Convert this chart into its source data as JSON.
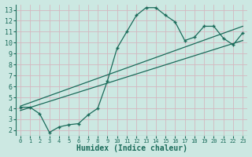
{
  "title": "",
  "xlabel": "Humidex (Indice chaleur)",
  "ylabel": "",
  "bg_color": "#cce8e2",
  "grid_color": "#b8d8d2",
  "line_color": "#1a6b5a",
  "xlim": [
    -0.5,
    23.5
  ],
  "ylim": [
    1.5,
    13.5
  ],
  "xticks": [
    0,
    1,
    2,
    3,
    4,
    5,
    6,
    7,
    8,
    9,
    10,
    11,
    12,
    13,
    14,
    15,
    16,
    17,
    18,
    19,
    20,
    21,
    22,
    23
  ],
  "yticks": [
    2,
    3,
    4,
    5,
    6,
    7,
    8,
    9,
    10,
    11,
    12,
    13
  ],
  "curve1_x": [
    0,
    1,
    2,
    3,
    4,
    5,
    6,
    7,
    8,
    9,
    10,
    11,
    12,
    13,
    14,
    15,
    16,
    17,
    18,
    19,
    20,
    21,
    22,
    23
  ],
  "curve1_y": [
    4.1,
    4.1,
    3.5,
    1.8,
    2.3,
    2.5,
    2.6,
    3.4,
    4.0,
    6.5,
    9.5,
    11.0,
    12.5,
    13.2,
    13.2,
    12.5,
    11.9,
    10.2,
    10.5,
    11.5,
    11.5,
    10.4,
    9.8,
    10.9
  ],
  "line2_x": [
    0,
    23
  ],
  "line2_y": [
    4.2,
    11.5
  ],
  "line3_x": [
    0,
    23
  ],
  "line3_y": [
    3.8,
    10.2
  ],
  "xlabel_fontsize": 7,
  "tick_fontsize_x": 5,
  "tick_fontsize_y": 6
}
